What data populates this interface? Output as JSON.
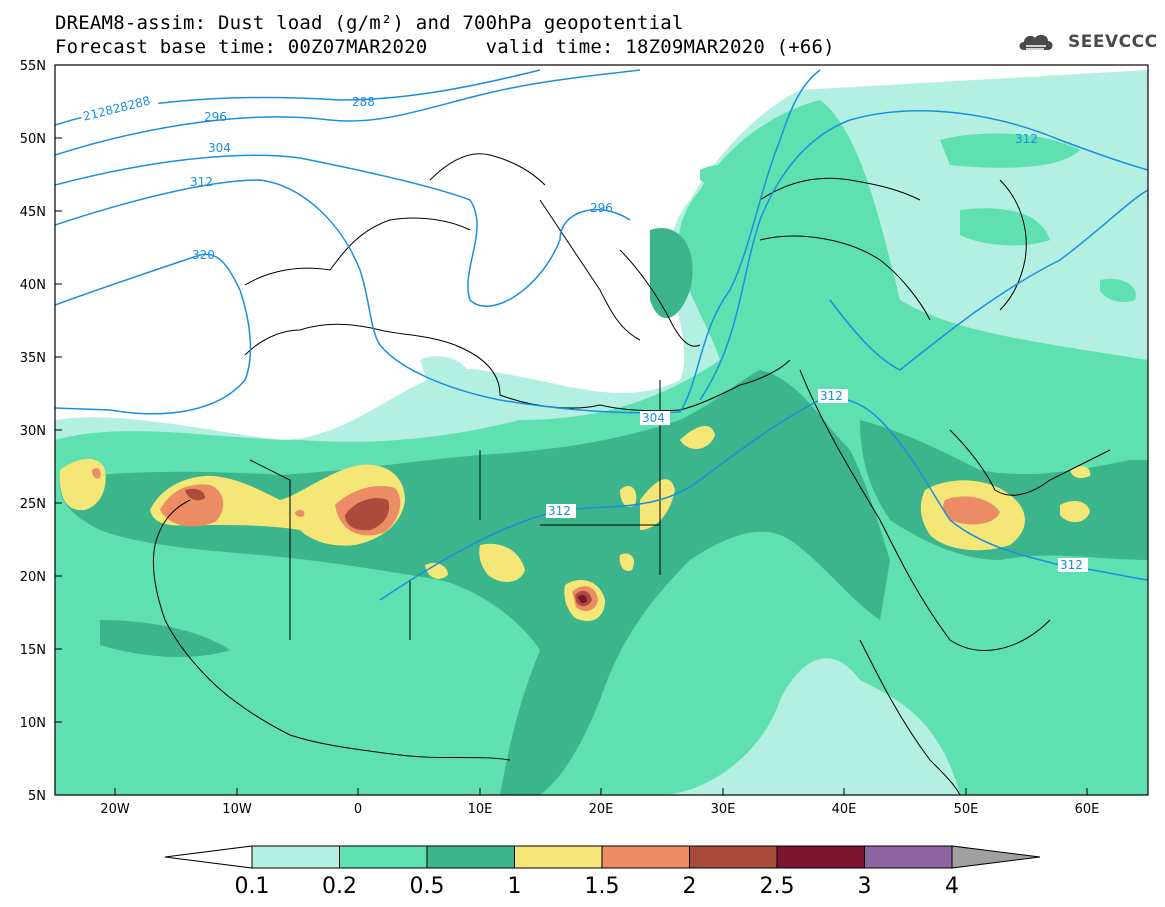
{
  "header": {
    "title_line1": "DREAM8-assim: Dust load (g/m²) and 700hPa geopotential",
    "title_line2": "Forecast base time: 00Z07MAR2020     valid time: 18Z09MAR2020 (+66)"
  },
  "logo": {
    "text": "SEEVCCC",
    "icon": "cloud-icon"
  },
  "axes": {
    "lat_labels": [
      "55N",
      "50N",
      "45N",
      "40N",
      "35N",
      "30N",
      "25N",
      "20N",
      "15N",
      "10N",
      "5N"
    ],
    "lon_labels": [
      "20W",
      "10W",
      "0",
      "10E",
      "20E",
      "30E",
      "40E",
      "50E",
      "60E"
    ]
  },
  "contour_labels": [
    "212828288",
    "288",
    "296",
    "296",
    "304",
    "312",
    "312",
    "320",
    "304",
    "312",
    "312",
    "312"
  ],
  "colorbar": {
    "labels": [
      "0.1",
      "0.2",
      "0.5",
      "1",
      "1.5",
      "2",
      "2.5",
      "3",
      "4"
    ],
    "colors": [
      "#b4f0e1",
      "#5ee0b0",
      "#3cb48c",
      "#f5e678",
      "#eb8c64",
      "#aa4b3c",
      "#7d1432",
      "#8c64a0"
    ],
    "under_color": "#ffffff",
    "over_color": "#a0a0a0"
  },
  "colors": {
    "contour": "#1a8fe0",
    "coast": "#000000",
    "lvl1": "#b4f0e1",
    "lvl2": "#5ee0b0",
    "lvl3": "#3cb48c",
    "lvl4": "#f5e678",
    "lvl5": "#eb8c64",
    "lvl6": "#aa4b3c",
    "lvl7": "#7d1432"
  }
}
